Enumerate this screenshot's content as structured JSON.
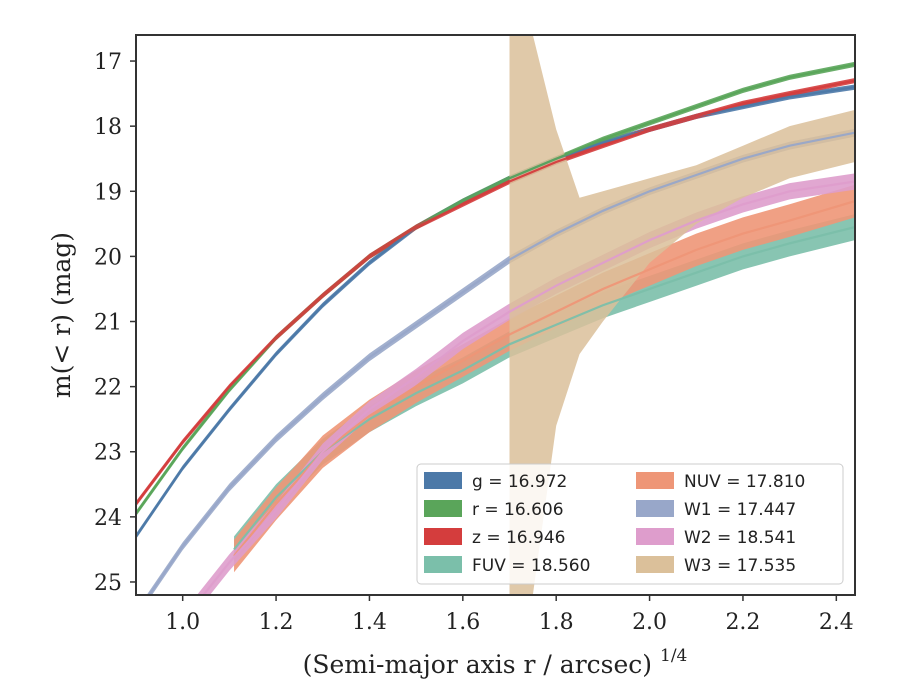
{
  "chart_data": {
    "type": "line",
    "title": "",
    "xlabel": "(Semi-major axis r / arcsec)",
    "xlabel_sup": "1/4",
    "ylabel": "m(< r) (mag)",
    "xlim": [
      0.9,
      2.44
    ],
    "ylim": [
      25.2,
      16.6
    ],
    "y_inverted": true,
    "x_ticks": [
      "1.0",
      "1.2",
      "1.4",
      "1.6",
      "1.8",
      "2.0",
      "2.2",
      "2.4"
    ],
    "y_ticks": [
      "17",
      "18",
      "19",
      "20",
      "21",
      "22",
      "23",
      "24",
      "25"
    ],
    "grid": false,
    "legend_position": "bottom-right",
    "legend": [
      {
        "label": "g = 16.972",
        "color": "#4c79a8"
      },
      {
        "label": "r = 16.606",
        "color": "#5aa55a"
      },
      {
        "label": "z = 16.946",
        "color": "#d43d3d"
      },
      {
        "label": "FUV = 18.560",
        "color": "#7bbfaa"
      },
      {
        "label": "NUV = 17.810",
        "color": "#ee9677"
      },
      {
        "label": "W1 = 17.447",
        "color": "#98a7c9"
      },
      {
        "label": "W2 = 18.541",
        "color": "#de9dcc"
      },
      {
        "label": "W3 = 17.535",
        "color": "#dbc09a"
      }
    ],
    "series": [
      {
        "name": "g = 16.972",
        "color": "#4c79a8",
        "x": [
          0.9,
          1.0,
          1.1,
          1.2,
          1.3,
          1.4,
          1.5,
          1.6,
          1.7,
          1.8,
          1.9,
          2.0,
          2.1,
          2.2,
          2.3,
          2.44
        ],
        "y": [
          24.3,
          23.25,
          22.35,
          21.5,
          20.75,
          20.1,
          19.55,
          19.15,
          18.8,
          18.5,
          18.25,
          18.05,
          17.85,
          17.7,
          17.55,
          17.4
        ],
        "band": 0.08
      },
      {
        "name": "r = 16.606",
        "color": "#5aa55a",
        "x": [
          0.9,
          1.0,
          1.1,
          1.2,
          1.3,
          1.4,
          1.5,
          1.6,
          1.7,
          1.8,
          1.9,
          2.0,
          2.1,
          2.2,
          2.3,
          2.44
        ],
        "y": [
          23.95,
          22.95,
          22.05,
          21.25,
          20.6,
          20.0,
          19.55,
          19.15,
          18.8,
          18.5,
          18.2,
          17.95,
          17.7,
          17.45,
          17.25,
          17.05
        ],
        "band": 0.08
      },
      {
        "name": "z = 16.946",
        "color": "#d43d3d",
        "x": [
          0.9,
          1.0,
          1.1,
          1.2,
          1.3,
          1.4,
          1.5,
          1.6,
          1.7,
          1.8,
          1.9,
          2.0,
          2.1,
          2.2,
          2.3,
          2.44
        ],
        "y": [
          23.8,
          22.85,
          22.0,
          21.25,
          20.6,
          20.0,
          19.55,
          19.2,
          18.85,
          18.55,
          18.3,
          18.05,
          17.85,
          17.65,
          17.5,
          17.3
        ],
        "band": 0.08
      },
      {
        "name": "FUV = 18.560",
        "color": "#7bbfaa",
        "x": [
          1.11,
          1.2,
          1.3,
          1.4,
          1.5,
          1.6,
          1.7,
          1.8,
          1.9,
          2.0,
          2.1,
          2.2,
          2.3,
          2.44
        ],
        "y": [
          24.5,
          23.7,
          23.0,
          22.5,
          22.1,
          21.75,
          21.35,
          21.05,
          20.75,
          20.5,
          20.25,
          20.0,
          19.8,
          19.55
        ],
        "band": 0.4
      },
      {
        "name": "NUV = 17.810",
        "color": "#ee9677",
        "x": [
          1.11,
          1.2,
          1.3,
          1.4,
          1.5,
          1.6,
          1.7,
          1.8,
          1.9,
          2.0,
          2.1,
          2.2,
          2.3,
          2.44
        ],
        "y": [
          24.6,
          23.8,
          23.0,
          22.45,
          22.0,
          21.6,
          21.2,
          20.85,
          20.5,
          20.2,
          19.9,
          19.65,
          19.45,
          19.15
        ],
        "band": 0.5
      },
      {
        "name": "W1 = 17.447",
        "color": "#98a7c9",
        "x": [
          0.9,
          1.0,
          1.1,
          1.2,
          1.3,
          1.4,
          1.5,
          1.6,
          1.7,
          1.8,
          1.9,
          2.0,
          2.1,
          2.2,
          2.3,
          2.44
        ],
        "y": [
          25.5,
          24.45,
          23.55,
          22.8,
          22.15,
          21.55,
          21.05,
          20.55,
          20.05,
          19.65,
          19.3,
          19.0,
          18.75,
          18.5,
          18.3,
          18.1
        ],
        "band": 0.12
      },
      {
        "name": "W2 = 18.541",
        "color": "#de9dcc",
        "x": [
          1.0,
          1.1,
          1.2,
          1.3,
          1.4,
          1.5,
          1.6,
          1.7,
          1.8,
          1.9,
          2.0,
          2.1,
          2.2,
          2.3,
          2.44
        ],
        "y": [
          25.6,
          24.7,
          23.9,
          23.0,
          22.35,
          21.85,
          21.3,
          20.85,
          20.45,
          20.1,
          19.75,
          19.45,
          19.2,
          19.0,
          18.85
        ],
        "band": 0.25
      },
      {
        "name": "W3 = 17.535",
        "color": "#dbc09a",
        "x": [
          1.7,
          1.75,
          1.8,
          1.85,
          1.9,
          2.0,
          2.1,
          2.2,
          2.3,
          2.44
        ],
        "y_upper": [
          16.6,
          16.6,
          18.05,
          19.1,
          19.0,
          18.8,
          18.6,
          18.3,
          18.0,
          17.75
        ],
        "y_lower": [
          25.2,
          25.2,
          22.6,
          21.5,
          21.0,
          20.1,
          19.5,
          19.1,
          18.8,
          18.55
        ]
      }
    ]
  }
}
